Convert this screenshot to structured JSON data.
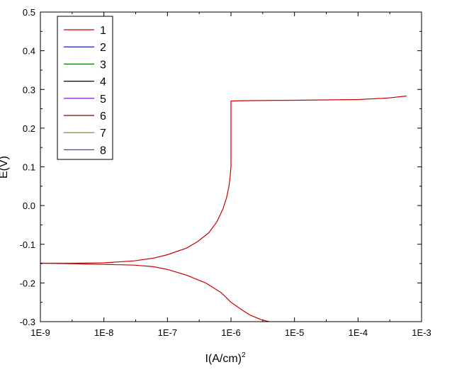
{
  "chart_data": {
    "type": "line",
    "xlabel": "I(A/cm)",
    "xlabel_superscript": "2",
    "ylabel": "E(V)",
    "x_scale": "log",
    "xlim": [
      1e-09,
      0.001
    ],
    "ylim": [
      -0.3,
      0.5
    ],
    "x_ticks": [
      {
        "value": 1e-09,
        "label": "1E-9"
      },
      {
        "value": 1e-08,
        "label": "1E-8"
      },
      {
        "value": 1e-07,
        "label": "1E-7"
      },
      {
        "value": 1e-06,
        "label": "1E-6"
      },
      {
        "value": 1e-05,
        "label": "1E-5"
      },
      {
        "value": 0.0001,
        "label": "1E-4"
      },
      {
        "value": 0.001,
        "label": "1E-3"
      }
    ],
    "y_ticks": [
      {
        "value": -0.3,
        "label": "-0.3"
      },
      {
        "value": -0.2,
        "label": "-0.2"
      },
      {
        "value": -0.1,
        "label": "-0.1"
      },
      {
        "value": 0.0,
        "label": "0.0"
      },
      {
        "value": 0.1,
        "label": "0.1"
      },
      {
        "value": 0.2,
        "label": "0.2"
      },
      {
        "value": 0.3,
        "label": "0.3"
      },
      {
        "value": 0.4,
        "label": "0.4"
      },
      {
        "value": 0.5,
        "label": "0.5"
      }
    ],
    "legend_position": "top-left",
    "grid": false,
    "series": [
      {
        "name": "1",
        "color": "#cc0000",
        "branches": [
          {
            "x": [
              1e-09,
              3e-09,
              1e-08,
              3e-08,
              6e-08,
              1e-07,
              2e-07,
              3e-07,
              4.5e-07,
              6e-07,
              7.5e-07,
              8.5e-07,
              9.3e-07,
              9.7e-07,
              1e-06,
              1e-06,
              1.5e-06,
              1e-05,
              0.0001,
              0.0003,
              0.00058
            ],
            "y": [
              -0.149,
              -0.149,
              -0.148,
              -0.143,
              -0.136,
              -0.127,
              -0.11,
              -0.093,
              -0.07,
              -0.042,
              -0.008,
              0.02,
              0.05,
              0.075,
              0.1,
              0.27,
              0.271,
              0.272,
              0.274,
              0.278,
              0.283
            ]
          },
          {
            "x": [
              1e-09,
              3e-09,
              1e-08,
              3e-08,
              6e-08,
              1e-07,
              2e-07,
              4e-07,
              7e-07,
              1e-06,
              1.5e-06,
              2e-06,
              3e-06,
              4e-06
            ],
            "y": [
              -0.149,
              -0.15,
              -0.152,
              -0.154,
              -0.158,
              -0.165,
              -0.18,
              -0.2,
              -0.225,
              -0.25,
              -0.27,
              -0.283,
              -0.295,
              -0.3
            ]
          }
        ]
      },
      {
        "name": "2",
        "color": "#0000cc",
        "branches": []
      },
      {
        "name": "3",
        "color": "#007a00",
        "branches": []
      },
      {
        "name": "4",
        "color": "#000000",
        "branches": []
      },
      {
        "name": "5",
        "color": "#7a00cc",
        "branches": []
      },
      {
        "name": "6",
        "color": "#8b0000",
        "branches": []
      },
      {
        "name": "7",
        "color": "#8b7500",
        "branches": []
      },
      {
        "name": "8",
        "color": "#2060a0",
        "branches": []
      }
    ]
  }
}
